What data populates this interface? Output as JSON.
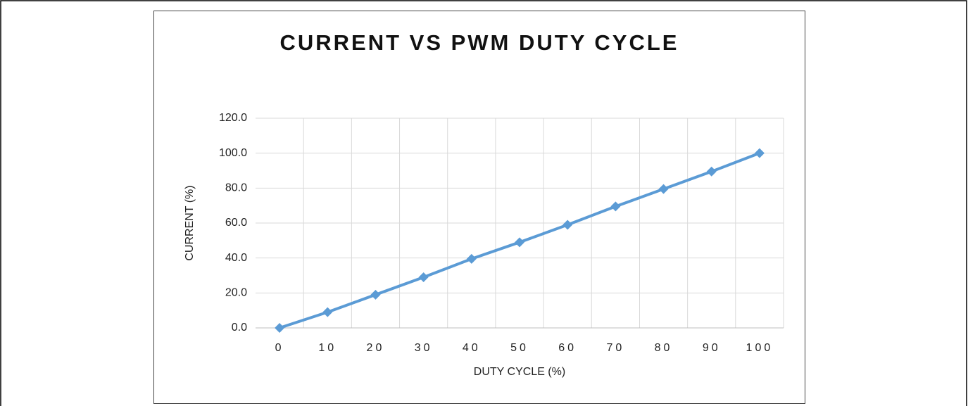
{
  "chart_data": {
    "type": "line",
    "title": "CURRENT VS PWM DUTY CYCLE",
    "x_label": "DUTY CYCLE (%)",
    "y_label": "CURRENT (%)",
    "categories": [
      "0",
      "10",
      "20",
      "30",
      "40",
      "50",
      "60",
      "70",
      "80",
      "90",
      "100"
    ],
    "series": [
      {
        "name": "CURRENT (%)",
        "color": "#5b9bd5",
        "values": [
          0,
          9,
          19,
          29,
          39.5,
          49,
          59,
          69.5,
          79.5,
          89.5,
          100
        ]
      }
    ],
    "ylim": [
      0,
      120
    ],
    "yticks": [
      {
        "value": 0,
        "label": "0.0"
      },
      {
        "value": 20,
        "label": "20.0"
      },
      {
        "value": 40,
        "label": "40.0"
      },
      {
        "value": 60,
        "label": "60.0"
      },
      {
        "value": 80,
        "label": "80.0"
      },
      {
        "value": 100,
        "label": "100.0"
      },
      {
        "value": 120,
        "label": "120.0"
      }
    ],
    "grid": true
  }
}
